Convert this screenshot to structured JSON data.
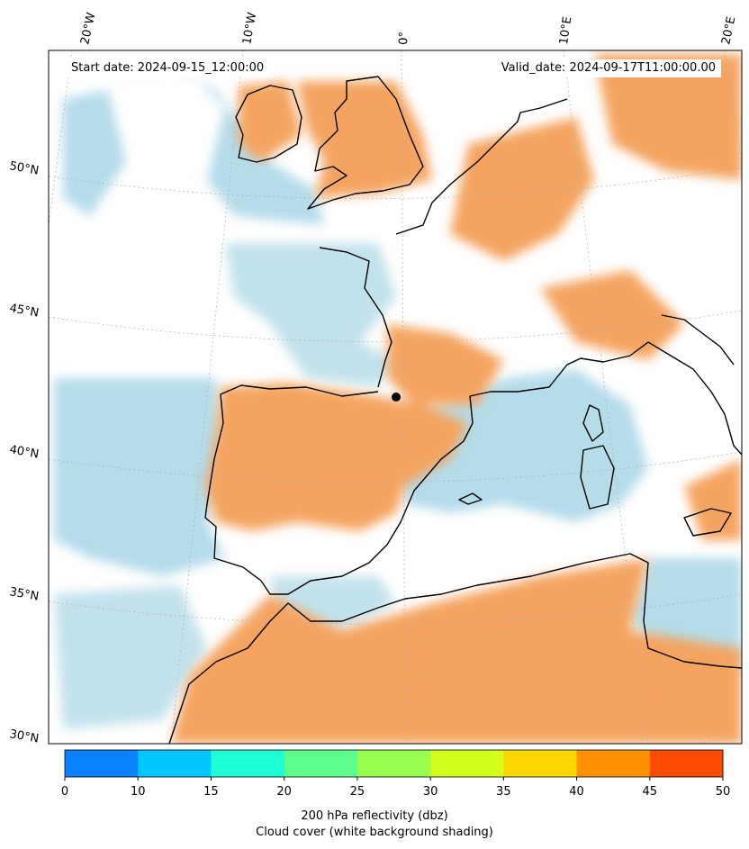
{
  "map": {
    "start_date": "Start date: 2024-09-15_12:00:00",
    "valid_date": "Valid_date: 2024-09-17T11:00:00.00",
    "lon_labels": [
      "20°W",
      "10°W",
      "0°",
      "10°E",
      "20°E"
    ],
    "lat_labels": [
      "50°N",
      "45°N",
      "40°N",
      "35°N",
      "30°N"
    ],
    "colors": {
      "cloud_blue": "#a8d6e6",
      "reflectivity_orange": "#f4a460",
      "coast": "#000000",
      "grid": "#b0b0b0"
    }
  },
  "colorbar": {
    "ticks": [
      "0",
      "10",
      "15",
      "20",
      "25",
      "30",
      "35",
      "40",
      "45",
      "50"
    ],
    "colors": [
      "#0a82ff",
      "#00c8ff",
      "#1effd6",
      "#5cff8e",
      "#96ff50",
      "#d2ff1e",
      "#ffd700",
      "#ff9100",
      "#ff4b00"
    ],
    "title": "200 hPa reflectivity (dbz)",
    "subtitle": "Cloud cover (white background shading)"
  }
}
